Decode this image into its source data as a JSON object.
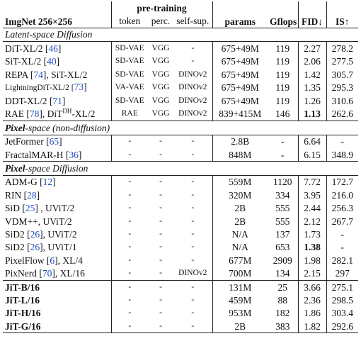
{
  "header": {
    "title": "ImgNet 256×256",
    "pretraining": "pre-training",
    "token": "token",
    "perc": "perc.",
    "selfsup": "self-sup.",
    "params": "params",
    "gflops": "Gflops",
    "fid": "FID↓",
    "is": "IS↑"
  },
  "sections": [
    {
      "title": [
        {
          "text": "Latent-space Diffusion"
        }
      ],
      "groups": [
        [
          {
            "method": [
              {
                "text": "DiT-XL/2 ["
              },
              {
                "text": "46",
                "style": "cite"
              },
              {
                "text": "]"
              }
            ],
            "token": "SD-VAE",
            "perc": "VGG",
            "selfsup": "-",
            "params": "675+49M",
            "gflops": "119",
            "fid": "2.27",
            "is": "278.2"
          },
          {
            "method": [
              {
                "text": "SiT-XL/2 ["
              },
              {
                "text": "40",
                "style": "cite"
              },
              {
                "text": "]"
              }
            ],
            "token": "SD-VAE",
            "perc": "VGG",
            "selfsup": "-",
            "params": "675+49M",
            "gflops": "119",
            "fid": "2.06",
            "is": "277.5"
          },
          {
            "method": [
              {
                "text": "REPA ["
              },
              {
                "text": "74",
                "style": "cite"
              },
              {
                "text": "], SiT-XL/2"
              }
            ],
            "token": "SD-VAE",
            "perc": "VGG",
            "selfsup": "DINOv2",
            "params": "675+49M",
            "gflops": "119",
            "fid": "1.42",
            "is": "305.7"
          },
          {
            "method": [
              {
                "text": "LightningDiT-XL/2 [",
                "style": "small"
              },
              {
                "text": "73",
                "style": "cite"
              },
              {
                "text": "]"
              }
            ],
            "token": "VA-VAE",
            "perc": "VGG",
            "selfsup": "DINOv2",
            "params": "675+49M",
            "gflops": "119",
            "fid": "1.35",
            "is": "295.3"
          },
          {
            "method": [
              {
                "text": "DDT-XL/2 ["
              },
              {
                "text": "71",
                "style": "cite"
              },
              {
                "text": "]"
              }
            ],
            "token": "SD-VAE",
            "perc": "VGG",
            "selfsup": "DINOv2",
            "params": "675+49M",
            "gflops": "119",
            "fid": "1.26",
            "is": "310.6"
          },
          {
            "method": [
              {
                "text": "RAE ["
              },
              {
                "text": "78",
                "style": "cite"
              },
              {
                "text": "], DiT"
              },
              {
                "text": "DH",
                "style": "sup"
              },
              {
                "text": "-XL/2"
              }
            ],
            "token": "RAE",
            "perc": "VGG",
            "selfsup": "DINOv2",
            "params": "839+415M",
            "gflops": "146",
            "fid": "1.13",
            "is": "262.6",
            "bold_cells": [
              "fid"
            ]
          }
        ]
      ]
    },
    {
      "title": [
        {
          "text": "Pixel",
          "style": "bold"
        },
        {
          "text": "-space (non-diffusion)"
        }
      ],
      "groups": [
        [
          {
            "method": [
              {
                "text": "JetFormer ["
              },
              {
                "text": "65",
                "style": "cite"
              },
              {
                "text": "]"
              }
            ],
            "token": "-",
            "perc": "-",
            "selfsup": "-",
            "params": "2.8B",
            "gflops": "-",
            "fid": "6.64",
            "is": "-"
          },
          {
            "method": [
              {
                "text": "FractalMAR-H ["
              },
              {
                "text": "36",
                "style": "cite"
              },
              {
                "text": "]"
              }
            ],
            "token": "-",
            "perc": "-",
            "selfsup": "-",
            "params": "848M",
            "gflops": "-",
            "fid": "6.15",
            "is": "348.9"
          }
        ]
      ]
    },
    {
      "title": [
        {
          "text": "Pixel",
          "style": "bold"
        },
        {
          "text": "-space Diffusion"
        }
      ],
      "groups": [
        [
          {
            "method": [
              {
                "text": "ADM-G ["
              },
              {
                "text": "12",
                "style": "cite"
              },
              {
                "text": "]"
              }
            ],
            "token": "-",
            "perc": "-",
            "selfsup": "-",
            "params": "559M",
            "gflops": "1120",
            "fid": "7.72",
            "is": "172.7"
          },
          {
            "method": [
              {
                "text": "RIN ["
              },
              {
                "text": "28",
                "style": "cite"
              },
              {
                "text": "]"
              }
            ],
            "token": "-",
            "perc": "-",
            "selfsup": "-",
            "params": "320M",
            "gflops": "334",
            "fid": "3.95",
            "is": "216.0"
          },
          {
            "method": [
              {
                "text": "SiD ["
              },
              {
                "text": "25",
                "style": "cite"
              },
              {
                "text": "] , UViT/2"
              }
            ],
            "token": "-",
            "perc": "-",
            "selfsup": "-",
            "params": "2B",
            "gflops": "555",
            "fid": "2.44",
            "is": "256.3"
          },
          {
            "method": [
              {
                "text": "VDM++, UViT/2"
              }
            ],
            "token": "-",
            "perc": "-",
            "selfsup": "-",
            "params": "2B",
            "gflops": "555",
            "fid": "2.12",
            "is": "267.7"
          },
          {
            "method": [
              {
                "text": "SiD2 ["
              },
              {
                "text": "26",
                "style": "cite"
              },
              {
                "text": "], UViT/2"
              }
            ],
            "token": "-",
            "perc": "-",
            "selfsup": "-",
            "params": "N/A",
            "gflops": "137",
            "fid": "1.73",
            "is": "-"
          },
          {
            "method": [
              {
                "text": "SiD2 ["
              },
              {
                "text": "26",
                "style": "cite"
              },
              {
                "text": "], UViT/1"
              }
            ],
            "token": "-",
            "perc": "-",
            "selfsup": "-",
            "params": "N/A",
            "gflops": "653",
            "fid": "1.38",
            "is": "-",
            "bold_cells": [
              "fid"
            ]
          },
          {
            "method": [
              {
                "text": "PixelFlow ["
              },
              {
                "text": "6",
                "style": "cite"
              },
              {
                "text": "], XL/4"
              }
            ],
            "token": "-",
            "perc": "-",
            "selfsup": "-",
            "params": "677M",
            "gflops": "2909",
            "fid": "1.98",
            "is": "282.1"
          },
          {
            "method": [
              {
                "text": "PixNerd ["
              },
              {
                "text": "70",
                "style": "cite"
              },
              {
                "text": "], XL/16"
              }
            ],
            "token": "-",
            "perc": "-",
            "selfsup": "DINOv2",
            "params": "700M",
            "gflops": "134",
            "fid": "2.15",
            "is": "297"
          }
        ],
        [
          {
            "method": [
              {
                "text": "JiT-B/16",
                "style": "bold"
              }
            ],
            "token": "-",
            "perc": "-",
            "selfsup": "-",
            "params": "131M",
            "gflops": "25",
            "fid": "3.66",
            "is": "275.1"
          },
          {
            "method": [
              {
                "text": "JiT-L/16",
                "style": "bold"
              }
            ],
            "token": "-",
            "perc": "-",
            "selfsup": "-",
            "params": "459M",
            "gflops": "88",
            "fid": "2.36",
            "is": "298.5"
          },
          {
            "method": [
              {
                "text": "JiT-H/16",
                "style": "bold"
              }
            ],
            "token": "-",
            "perc": "-",
            "selfsup": "-",
            "params": "953M",
            "gflops": "182",
            "fid": "1.86",
            "is": "303.4"
          },
          {
            "method": [
              {
                "text": "JiT-G/16",
                "style": "bold"
              }
            ],
            "token": "-",
            "perc": "-",
            "selfsup": "-",
            "params": "2B",
            "gflops": "383",
            "fid": "1.82",
            "is": "292.6"
          }
        ]
      ]
    }
  ]
}
